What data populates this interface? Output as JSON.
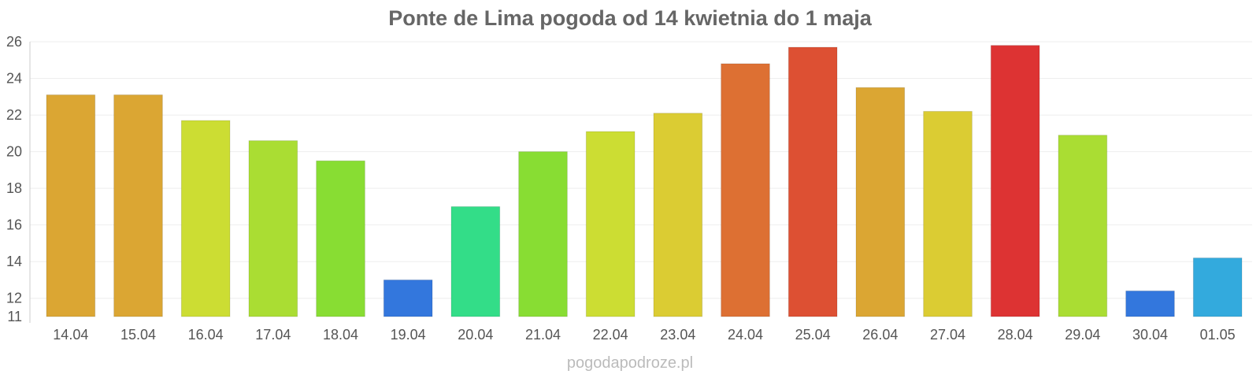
{
  "chart_data": {
    "type": "bar",
    "title": "Ponte de Lima pogoda od 14 kwietnia do 1 maja",
    "xlabel": "",
    "ylabel": "",
    "categories": [
      "14.04",
      "15.04",
      "16.04",
      "17.04",
      "18.04",
      "19.04",
      "20.04",
      "21.04",
      "22.04",
      "23.04",
      "24.04",
      "25.04",
      "26.04",
      "27.04",
      "28.04",
      "29.04",
      "30.04",
      "01.05"
    ],
    "values": [
      23.1,
      23.1,
      21.7,
      20.6,
      19.5,
      13.0,
      17.0,
      20.0,
      21.1,
      22.1,
      24.8,
      25.7,
      23.5,
      22.2,
      25.8,
      20.9,
      12.4,
      14.2
    ],
    "colors": [
      "#dba633",
      "#dba633",
      "#ccdd33",
      "#aadd33",
      "#88dd33",
      "#3377dd",
      "#33dd88",
      "#88dd33",
      "#ccdd33",
      "#dbcc33",
      "#dd7033",
      "#dd5033",
      "#dba633",
      "#dbcc33",
      "#dd3333",
      "#aadd33",
      "#3377dd",
      "#33aadd"
    ],
    "ylim": [
      11,
      26
    ],
    "yticks": [
      11,
      12,
      14,
      16,
      18,
      20,
      22,
      24,
      26
    ],
    "grid": true,
    "legend": "none"
  },
  "watermark": "pogodapodroze.pl"
}
